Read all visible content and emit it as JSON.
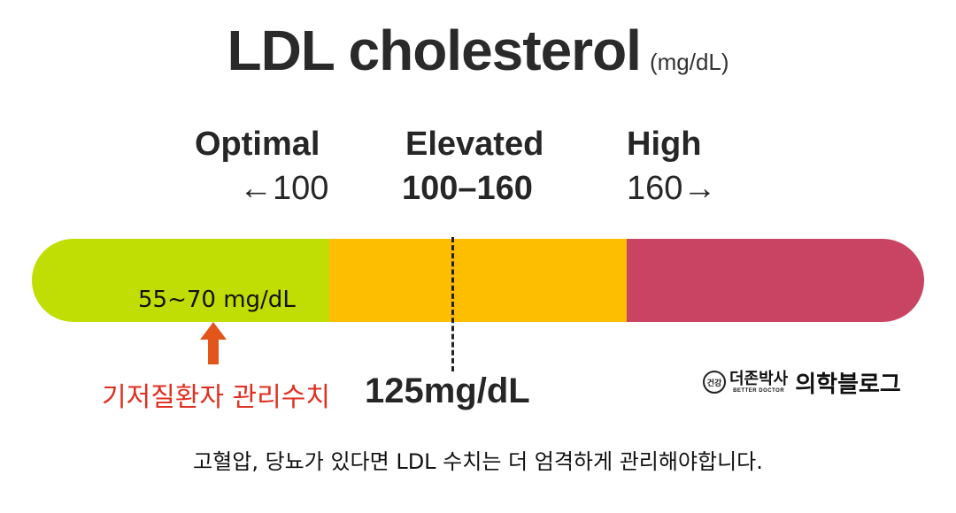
{
  "title": {
    "text": "LDL cholesterol",
    "unit": "(mg/dL)"
  },
  "categories": [
    {
      "label": "Optimal",
      "range": "←100",
      "color": "#c0dd04"
    },
    {
      "label": "Elevated",
      "range": "100–160",
      "color": "#fdbd00"
    },
    {
      "label": "High",
      "range": "160→",
      "color": "#c94462"
    }
  ],
  "target": {
    "text": "55~70 mg/dL",
    "caption": "기저질환자 관리수치",
    "arrow_color": "#e2561b"
  },
  "marker": {
    "text": "125mg/dL"
  },
  "logo": {
    "badge": "건강",
    "brand": "더존박사",
    "sub": "BETTER DOCTOR",
    "blog": "의학블로그"
  },
  "footer": "고혈압, 당뇨가 있다면 LDL 수치는 더 엄격하게 관리해야합니다."
}
